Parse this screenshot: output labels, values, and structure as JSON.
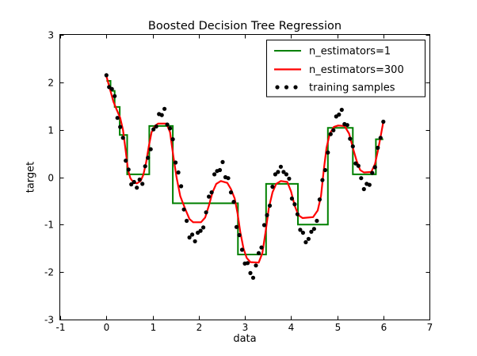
{
  "figure": {
    "background": "#ffffff",
    "frame_color": "#000000"
  },
  "chart_data": {
    "type": "line+scatter",
    "title": "Boosted Decision Tree Regression",
    "xlabel": "data",
    "ylabel": "target",
    "xlim": [
      -1,
      7
    ],
    "ylim": [
      -3,
      3
    ],
    "xticks": [
      -1,
      0,
      1,
      2,
      3,
      4,
      5,
      6,
      7
    ],
    "xtick_labels": [
      "-1",
      "0",
      "1",
      "2",
      "3",
      "4",
      "5",
      "6",
      "7"
    ],
    "yticks": [
      -3,
      -2,
      -1,
      0,
      1,
      2,
      3
    ],
    "ytick_labels": [
      "-3",
      "-2",
      "-1",
      "0",
      "1",
      "2",
      "3"
    ],
    "grid": false,
    "legend": {
      "position": "upper right",
      "border_color": "#000000",
      "background": "#ffffff"
    },
    "series": [
      {
        "name": "n_estimators=1",
        "type": "step",
        "color": "#008000",
        "linewidth": 2,
        "steps": [
          [
            0.0,
            0.09,
            2.03
          ],
          [
            0.09,
            0.18,
            1.82
          ],
          [
            0.18,
            0.29,
            1.48
          ],
          [
            0.29,
            0.45,
            0.89
          ],
          [
            0.45,
            0.93,
            0.06
          ],
          [
            0.93,
            1.44,
            1.08
          ],
          [
            1.44,
            2.85,
            -0.55
          ],
          [
            2.85,
            3.46,
            -1.63
          ],
          [
            3.46,
            4.15,
            -0.14
          ],
          [
            4.15,
            4.8,
            -1.0
          ],
          [
            4.8,
            5.34,
            1.04
          ],
          [
            5.34,
            5.84,
            0.06
          ],
          [
            5.84,
            6.0,
            0.8
          ]
        ]
      },
      {
        "name": "n_estimators=300",
        "type": "line",
        "color": "#ff0000",
        "linewidth": 2.2,
        "points": [
          [
            0.0,
            2.13
          ],
          [
            0.08,
            1.85
          ],
          [
            0.15,
            1.6
          ],
          [
            0.22,
            1.43
          ],
          [
            0.3,
            1.25
          ],
          [
            0.36,
            1.0
          ],
          [
            0.42,
            0.55
          ],
          [
            0.47,
            0.15
          ],
          [
            0.52,
            -0.02
          ],
          [
            0.58,
            -0.1
          ],
          [
            0.66,
            -0.13
          ],
          [
            0.74,
            -0.08
          ],
          [
            0.8,
            0.05
          ],
          [
            0.86,
            0.3
          ],
          [
            0.92,
            0.65
          ],
          [
            0.98,
            0.95
          ],
          [
            1.05,
            1.08
          ],
          [
            1.12,
            1.13
          ],
          [
            1.3,
            1.13
          ],
          [
            1.38,
            0.95
          ],
          [
            1.45,
            0.45
          ],
          [
            1.52,
            0.0
          ],
          [
            1.6,
            -0.4
          ],
          [
            1.7,
            -0.65
          ],
          [
            1.8,
            -0.88
          ],
          [
            1.88,
            -0.95
          ],
          [
            2.05,
            -0.95
          ],
          [
            2.14,
            -0.85
          ],
          [
            2.22,
            -0.6
          ],
          [
            2.3,
            -0.32
          ],
          [
            2.38,
            -0.14
          ],
          [
            2.48,
            -0.08
          ],
          [
            2.62,
            -0.12
          ],
          [
            2.7,
            -0.25
          ],
          [
            2.78,
            -0.45
          ],
          [
            2.84,
            -0.75
          ],
          [
            2.9,
            -1.15
          ],
          [
            2.97,
            -1.5
          ],
          [
            3.04,
            -1.7
          ],
          [
            3.12,
            -1.79
          ],
          [
            3.3,
            -1.8
          ],
          [
            3.38,
            -1.6
          ],
          [
            3.45,
            -1.15
          ],
          [
            3.52,
            -0.65
          ],
          [
            3.6,
            -0.32
          ],
          [
            3.68,
            -0.14
          ],
          [
            3.78,
            -0.08
          ],
          [
            3.92,
            -0.1
          ],
          [
            4.0,
            -0.3
          ],
          [
            4.08,
            -0.6
          ],
          [
            4.16,
            -0.8
          ],
          [
            4.25,
            -0.86
          ],
          [
            4.48,
            -0.84
          ],
          [
            4.58,
            -0.7
          ],
          [
            4.65,
            -0.4
          ],
          [
            4.71,
            0.15
          ],
          [
            4.77,
            0.62
          ],
          [
            4.84,
            0.92
          ],
          [
            4.93,
            1.06
          ],
          [
            5.02,
            1.09
          ],
          [
            5.16,
            1.08
          ],
          [
            5.26,
            0.92
          ],
          [
            5.34,
            0.62
          ],
          [
            5.42,
            0.35
          ],
          [
            5.5,
            0.15
          ],
          [
            5.58,
            0.1
          ],
          [
            5.74,
            0.11
          ],
          [
            5.82,
            0.28
          ],
          [
            5.88,
            0.55
          ],
          [
            5.94,
            0.85
          ],
          [
            6.0,
            1.17
          ]
        ]
      },
      {
        "name": "training samples",
        "type": "scatter",
        "color": "#000000",
        "marker": "circle",
        "marker_radius": 2.6,
        "points": [
          [
            0.0,
            2.15
          ],
          [
            0.06,
            1.9
          ],
          [
            0.12,
            1.86
          ],
          [
            0.18,
            1.71
          ],
          [
            0.24,
            1.25
          ],
          [
            0.3,
            1.06
          ],
          [
            0.36,
            0.83
          ],
          [
            0.42,
            0.35
          ],
          [
            0.48,
            0.16
          ],
          [
            0.54,
            -0.15
          ],
          [
            0.6,
            -0.1
          ],
          [
            0.66,
            -0.22
          ],
          [
            0.72,
            -0.05
          ],
          [
            0.78,
            -0.14
          ],
          [
            0.84,
            0.23
          ],
          [
            0.9,
            0.41
          ],
          [
            0.96,
            0.59
          ],
          [
            1.02,
            1.01
          ],
          [
            1.08,
            1.07
          ],
          [
            1.14,
            1.33
          ],
          [
            1.2,
            1.31
          ],
          [
            1.26,
            1.44
          ],
          [
            1.32,
            1.11
          ],
          [
            1.38,
            1.03
          ],
          [
            1.44,
            0.8
          ],
          [
            1.5,
            0.31
          ],
          [
            1.56,
            0.1
          ],
          [
            1.62,
            -0.19
          ],
          [
            1.68,
            -0.68
          ],
          [
            1.74,
            -0.92
          ],
          [
            1.8,
            -1.27
          ],
          [
            1.86,
            -1.21
          ],
          [
            1.92,
            -1.35
          ],
          [
            1.98,
            -1.17
          ],
          [
            2.04,
            -1.13
          ],
          [
            2.1,
            -1.06
          ],
          [
            2.16,
            -0.74
          ],
          [
            2.22,
            -0.41
          ],
          [
            2.28,
            -0.32
          ],
          [
            2.34,
            0.06
          ],
          [
            2.4,
            0.13
          ],
          [
            2.46,
            0.15
          ],
          [
            2.52,
            0.32
          ],
          [
            2.58,
            0.0
          ],
          [
            2.64,
            -0.02
          ],
          [
            2.7,
            -0.32
          ],
          [
            2.76,
            -0.52
          ],
          [
            2.82,
            -1.05
          ],
          [
            2.88,
            -1.22
          ],
          [
            2.94,
            -1.53
          ],
          [
            3.0,
            -1.82
          ],
          [
            3.06,
            -1.81
          ],
          [
            3.12,
            -2.02
          ],
          [
            3.18,
            -2.12
          ],
          [
            3.24,
            -1.86
          ],
          [
            3.3,
            -1.6
          ],
          [
            3.36,
            -1.48
          ],
          [
            3.42,
            -1.01
          ],
          [
            3.48,
            -0.8
          ],
          [
            3.54,
            -0.6
          ],
          [
            3.6,
            -0.2
          ],
          [
            3.66,
            0.06
          ],
          [
            3.72,
            0.11
          ],
          [
            3.78,
            0.22
          ],
          [
            3.84,
            0.11
          ],
          [
            3.9,
            0.06
          ],
          [
            3.96,
            -0.03
          ],
          [
            4.02,
            -0.45
          ],
          [
            4.08,
            -0.57
          ],
          [
            4.14,
            -0.78
          ],
          [
            4.2,
            -1.11
          ],
          [
            4.26,
            -1.17
          ],
          [
            4.32,
            -1.37
          ],
          [
            4.38,
            -1.3
          ],
          [
            4.44,
            -1.15
          ],
          [
            4.5,
            -1.09
          ],
          [
            4.56,
            -0.92
          ],
          [
            4.62,
            -0.47
          ],
          [
            4.68,
            -0.06
          ],
          [
            4.74,
            0.15
          ],
          [
            4.8,
            0.52
          ],
          [
            4.86,
            0.91
          ],
          [
            4.92,
            0.99
          ],
          [
            4.98,
            1.28
          ],
          [
            5.04,
            1.32
          ],
          [
            5.1,
            1.42
          ],
          [
            5.16,
            1.12
          ],
          [
            5.22,
            1.1
          ],
          [
            5.28,
            0.81
          ],
          [
            5.34,
            0.65
          ],
          [
            5.4,
            0.29
          ],
          [
            5.46,
            0.24
          ],
          [
            5.52,
            -0.02
          ],
          [
            5.58,
            -0.25
          ],
          [
            5.64,
            -0.14
          ],
          [
            5.7,
            -0.16
          ],
          [
            5.76,
            0.09
          ],
          [
            5.82,
            0.21
          ],
          [
            5.88,
            0.62
          ],
          [
            5.94,
            0.83
          ],
          [
            6.0,
            1.17
          ]
        ]
      }
    ]
  }
}
